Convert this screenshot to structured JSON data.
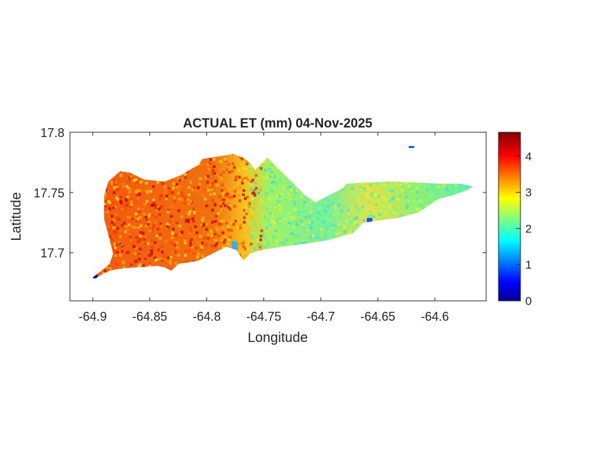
{
  "chart_data": {
    "type": "heatmap",
    "title": "ACTUAL ET (mm) 04-Nov-2025",
    "xlabel": "Longitude",
    "ylabel": "Latitude",
    "xlim": [
      -64.92,
      -64.555
    ],
    "ylim": [
      17.66,
      17.8
    ],
    "xticks": [
      -64.9,
      -64.85,
      -64.8,
      -64.75,
      -64.7,
      -64.65,
      -64.6
    ],
    "xtick_labels": [
      "-64.9",
      "-64.85",
      "-64.8",
      "-64.75",
      "-64.7",
      "-64.65",
      "-64.6"
    ],
    "yticks": [
      17.7,
      17.75,
      17.8
    ],
    "ytick_labels": [
      "17.7",
      "17.75",
      "17.8"
    ],
    "colorbar": {
      "colormap": "jet",
      "clim": [
        0,
        4.66
      ],
      "ticks": [
        0,
        1,
        2,
        3,
        4
      ],
      "tick_labels": [
        "0",
        "1",
        "2",
        "3",
        "4"
      ],
      "location": "right"
    },
    "grid": false
  }
}
